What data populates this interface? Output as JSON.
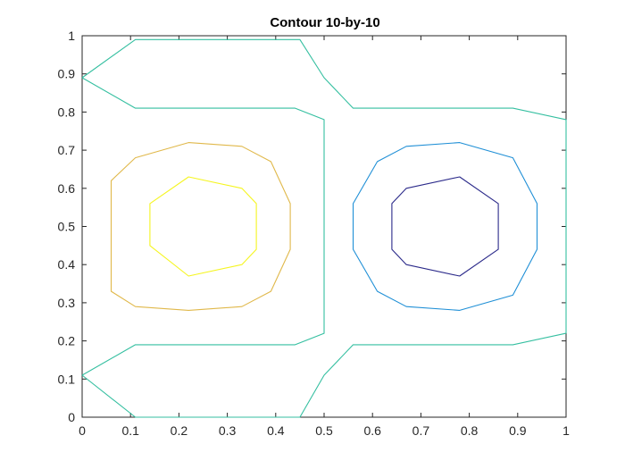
{
  "chart_data": {
    "type": "contour",
    "title": "Contour 10-by-10",
    "xlabel": "",
    "ylabel": "",
    "xlim": [
      0,
      1
    ],
    "ylim": [
      0,
      1
    ],
    "grid": false,
    "x_ticks": [
      0,
      0.1,
      0.2,
      0.3,
      0.4,
      0.5,
      0.6,
      0.7,
      0.8,
      0.9,
      1
    ],
    "y_ticks": [
      0,
      0.1,
      0.2,
      0.3,
      0.4,
      0.5,
      0.6,
      0.7,
      0.8,
      0.9,
      1
    ],
    "x_tick_labels": [
      "0",
      "0.1",
      "0.2",
      "0.3",
      "0.4",
      "0.5",
      "0.6",
      "0.7",
      "0.8",
      "0.9",
      "1"
    ],
    "y_tick_labels": [
      "0",
      "0.1",
      "0.2",
      "0.3",
      "0.4",
      "0.5",
      "0.6",
      "0.7",
      "0.8",
      "0.9",
      "1"
    ],
    "contour_lines": [
      {
        "name": "outer-level",
        "color": "#34bfa0",
        "points": [
          [
            0,
            0.89
          ],
          [
            0.11,
            0.99
          ],
          [
            0.45,
            0.99
          ],
          [
            0.5,
            0.89
          ],
          [
            0.56,
            0.81
          ],
          [
            0.89,
            0.81
          ],
          [
            1,
            0.78
          ]
        ]
      },
      {
        "name": "outer-level",
        "color": "#34bfa0",
        "points": [
          [
            0,
            0.89
          ],
          [
            0.11,
            0.81
          ],
          [
            0.44,
            0.81
          ],
          [
            0.5,
            0.78
          ],
          [
            0.5,
            0.22
          ],
          [
            0.44,
            0.19
          ],
          [
            0.11,
            0.19
          ],
          [
            0,
            0.11
          ]
        ]
      },
      {
        "name": "outer-level",
        "color": "#34bfa0",
        "points": [
          [
            0,
            0.11
          ],
          [
            0.11,
            0.0
          ],
          [
            0.45,
            0.0
          ],
          [
            0.5,
            0.11
          ],
          [
            0.56,
            0.19
          ],
          [
            0.89,
            0.19
          ],
          [
            1,
            0.22
          ]
        ]
      },
      {
        "name": "outer-level",
        "color": "#34bfa0",
        "points": [
          [
            1,
            0.78
          ],
          [
            1,
            0.22
          ]
        ]
      },
      {
        "name": "left-outer",
        "color": "#e0b84a",
        "closed": true,
        "points": [
          [
            0.22,
            0.72
          ],
          [
            0.33,
            0.71
          ],
          [
            0.39,
            0.67
          ],
          [
            0.43,
            0.56
          ],
          [
            0.43,
            0.44
          ],
          [
            0.39,
            0.33
          ],
          [
            0.33,
            0.29
          ],
          [
            0.22,
            0.28
          ],
          [
            0.11,
            0.29
          ],
          [
            0.06,
            0.33
          ],
          [
            0.06,
            0.44
          ],
          [
            0.06,
            0.56
          ],
          [
            0.06,
            0.62
          ],
          [
            0.11,
            0.68
          ]
        ]
      },
      {
        "name": "left-inner",
        "color": "#f5f520",
        "closed": true,
        "points": [
          [
            0.22,
            0.63
          ],
          [
            0.33,
            0.6
          ],
          [
            0.36,
            0.56
          ],
          [
            0.36,
            0.44
          ],
          [
            0.33,
            0.4
          ],
          [
            0.22,
            0.37
          ],
          [
            0.14,
            0.45
          ],
          [
            0.14,
            0.56
          ]
        ]
      },
      {
        "name": "right-outer",
        "color": "#1f8fd6",
        "closed": true,
        "points": [
          [
            0.67,
            0.71
          ],
          [
            0.78,
            0.72
          ],
          [
            0.89,
            0.68
          ],
          [
            0.94,
            0.56
          ],
          [
            0.94,
            0.44
          ],
          [
            0.89,
            0.32
          ],
          [
            0.78,
            0.28
          ],
          [
            0.67,
            0.29
          ],
          [
            0.61,
            0.33
          ],
          [
            0.56,
            0.44
          ],
          [
            0.56,
            0.56
          ],
          [
            0.61,
            0.67
          ]
        ]
      },
      {
        "name": "right-inner",
        "color": "#2b2a8a",
        "closed": true,
        "points": [
          [
            0.67,
            0.6
          ],
          [
            0.78,
            0.63
          ],
          [
            0.86,
            0.56
          ],
          [
            0.86,
            0.44
          ],
          [
            0.78,
            0.37
          ],
          [
            0.67,
            0.4
          ],
          [
            0.64,
            0.44
          ],
          [
            0.64,
            0.56
          ]
        ]
      }
    ]
  }
}
